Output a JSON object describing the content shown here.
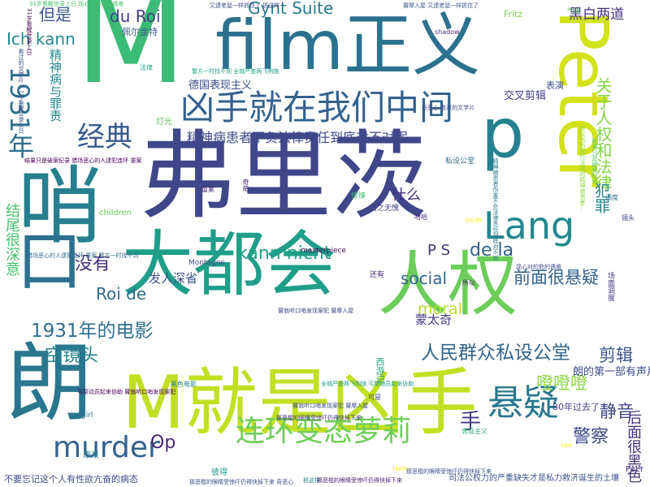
{
  "words": [
    {
      "text": "M",
      "color": "#3bbb75"
    },
    {
      "text": "弗里茨",
      "color": "#3f4788"
    },
    {
      "text": "大都会",
      "color": "#1f9e89"
    },
    {
      "text": "film正义",
      "color": "#2c718e"
    },
    {
      "text": "M就是凶手",
      "color": "#c2df23"
    },
    {
      "text": "人权",
      "color": "#6ccd5a"
    },
    {
      "text": "Peter",
      "color": "#d2e21b"
    },
    {
      "text": "凶手就在我们中间",
      "color": "#33628d"
    },
    {
      "text": "朗",
      "color": "#2a768e"
    },
    {
      "text": "哨",
      "color": "#277f8e"
    },
    {
      "text": "p",
      "color": "#26818e"
    },
    {
      "text": "口",
      "color": "#2d718e"
    },
    {
      "text": "Lang",
      "color": "#24878e"
    },
    {
      "text": "连环变态萝莉",
      "color": "#6ece58"
    },
    {
      "text": "悬疑",
      "color": "#2a778e"
    },
    {
      "text": "murder",
      "color": "#33638d"
    },
    {
      "text": "经典",
      "color": "#38598c"
    },
    {
      "text": "1931年",
      "color": "#2d708e"
    },
    {
      "text": "人民群众私设公堂",
      "color": "#32658e"
    },
    {
      "text": "1931年的电影",
      "color": "#2e6e8e"
    },
    {
      "text": "空镜头",
      "color": "#25848e"
    },
    {
      "text": "kann nicht",
      "color": "#1fa088"
    },
    {
      "text": "精神病患者不负法律责任到底对不对呢",
      "color": "#3e4a89"
    },
    {
      "text": "关于人权和法律",
      "color": "#85d54a"
    },
    {
      "text": "Ich kann",
      "color": "#23898e"
    },
    {
      "text": "Gynt Suite",
      "color": "#2a788e"
    },
    {
      "text": "du Roi",
      "color": "#404387"
    },
    {
      "text": "但是",
      "color": "#38588c"
    },
    {
      "text": "什么",
      "color": "#46327e"
    },
    {
      "text": "没有",
      "color": "#46307e"
    },
    {
      "text": "de la",
      "color": "#33628d"
    },
    {
      "text": "Roi de",
      "color": "#2e6d8e"
    },
    {
      "text": "P S",
      "color": "#45337d"
    },
    {
      "text": "social",
      "color": "#31688e"
    },
    {
      "text": "moral",
      "color": "#b8de29"
    },
    {
      "text": "前面很悬疑",
      "color": "#33628d"
    },
    {
      "text": "剪辑",
      "color": "#3a548c"
    },
    {
      "text": "噔噔噔",
      "color": "#8bd646"
    },
    {
      "text": "手",
      "color": "#443b84"
    },
    {
      "text": "警察",
      "color": "#3f4889"
    },
    {
      "text": "静音",
      "color": "#404588"
    },
    {
      "text": "Op",
      "color": "#482475"
    },
    {
      "text": "犯罪",
      "color": "#24868e"
    },
    {
      "text": "结尾很深意",
      "color": "#4ac16d"
    },
    {
      "text": "后面很黑色",
      "color": "#46337e"
    },
    {
      "text": "精神病与罪责",
      "color": "#238a8d"
    },
    {
      "text": "黑白两道",
      "color": "#46307e"
    },
    {
      "text": "交叉剪辑",
      "color": "#424086"
    },
    {
      "text": "德国表现主义",
      "color": "#3d4d8a"
    },
    {
      "text": "发人深省",
      "color": "#3b528b"
    },
    {
      "text": "蒙太奇",
      "color": "#443a83"
    },
    {
      "text": "朗的第一部有声片",
      "color": "#3e4c8a"
    },
    {
      "text": "80年过去了",
      "color": "#414487"
    },
    {
      "text": "司法公权力的严重缺失才是私力救济诞生的土壤",
      "color": "#3b528b"
    },
    {
      "text": "不要忘记这个人有性欲亢奋的病态",
      "color": "#3e4989"
    },
    {
      "text": "佩尔金特",
      "color": "#39568c"
    },
    {
      "text": "Fritz",
      "color": "#7ad151"
    },
    {
      "text": "masterpiece",
      "color": "#440154"
    },
    {
      "text": "Montagne",
      "color": "#3e4a89"
    },
    {
      "text": "表演",
      "color": "#3e4c8a"
    },
    {
      "text": "灯光",
      "color": "#5ec962"
    },
    {
      "text": "children",
      "color": "#67cc5c"
    },
    {
      "text": "当之无愧",
      "color": "#404387"
    },
    {
      "text": "惊悚",
      "color": "#3bbb75"
    },
    {
      "text": "表现主义",
      "color": "#29af7f"
    },
    {
      "text": "西游记",
      "color": "#21a685"
    },
    {
      "text": "原来",
      "color": "#277f8e"
    },
    {
      "text": "彼得",
      "color": "#1f9a8a"
    },
    {
      "text": "气球",
      "color": "#56c667"
    },
    {
      "text": "法律",
      "color": "#1fa187"
    },
    {
      "text": "还有",
      "color": "#482475"
    },
    {
      "text": "所以",
      "color": "#48186a"
    },
    {
      "text": "哈哈",
      "color": "#482475"
    },
    {
      "text": "可是",
      "color": "#3e4c8a"
    },
    {
      "text": "girl",
      "color": "#2a788e"
    },
    {
      "text": "see",
      "color": "#fde725"
    },
    {
      "text": "Halle",
      "color": "#fde725"
    },
    {
      "text": "Peer",
      "color": "#472f7d"
    },
    {
      "text": "黑色电影",
      "color": "#287c8e"
    },
    {
      "text": "私设公堂",
      "color": "#31688e"
    },
    {
      "text": "shadow",
      "color": "#472d7b"
    },
    {
      "text": "调度",
      "color": "#2e6f8e"
    },
    {
      "text": "镜头",
      "color": "#414487"
    },
    {
      "text": "mu9t",
      "color": "#fde725"
    },
    {
      "text": "场面调度",
      "color": "#453882"
    },
    {
      "text": "奇葩",
      "color": "#481f70"
    },
    {
      "text": "重案",
      "color": "#482878"
    },
    {
      "text": "又逮老鼠一样抓住了 抓这样",
      "color": "#3e4c8a"
    },
    {
      "text": "瞽摩入屋 又逮老鼠一样抓住了",
      "color": "#3b528b"
    },
    {
      "text": "31岁看醒世录上日 现心对的危的遇难",
      "color": "#4ac16d"
    },
    {
      "text": "31岁看醒世录上日",
      "color": "#440154"
    },
    {
      "text": "看过的文学片 3.1年看醒世录上日",
      "color": "#3b528b"
    },
    {
      "text": "警方一时找不到 全城严查两飞狗随",
      "color": "#1fa187"
    },
    {
      "text": "奇恶心 看过的文学片",
      "color": "#3e4c8a"
    },
    {
      "text": "结果只是破案纪录 猎场恶心的人逮犯连环 童案",
      "color": "#440154"
    },
    {
      "text": "猎场恶心的人逮犯连环 童案 警方一时找不到",
      "color": "#31688e"
    },
    {
      "text": "精神病患者伤害不负法律责任到底对不对",
      "color": "#2a788e"
    },
    {
      "text": "所以当为现行法律的精神病患者...",
      "color": "#8fd744"
    },
    {
      "text": "结果只是破案纪录",
      "color": "#5ec962"
    },
    {
      "text": "丐帮动员起来协助 瞽翁听口哨发现案犯",
      "color": "#440154"
    },
    {
      "text": "全城严查两飞狗随 丐帮动员起来协助",
      "color": "#1f9e89"
    },
    {
      "text": "瞽翁听口哨发现案犯 瞽摩入屋",
      "color": "#3f4788"
    },
    {
      "text": "瞽翁听口哨发现案犯 瞽摩入屋",
      "color": "#3e4c8a"
    },
    {
      "text": "那恶棍的眼睛受惊吓仍得快掉下来 奇恶心",
      "color": "#3b528b"
    },
    {
      "text": "抓这样",
      "color": "#2a788e"
    },
    {
      "text": "那恶棍的眼睛受惊吓仍得快掉下来",
      "color": "#481f70"
    },
    {
      "text": "那恶棍的眼睛受惊吓仍得快掉下来",
      "color": "#3b528b"
    },
    {
      "text": "那恶棍的眼睛受惊吓仍得快掉下来",
      "color": "#46337e"
    },
    {
      "text": "现心对的危的遇难",
      "color": "#3e4c8a"
    }
  ]
}
